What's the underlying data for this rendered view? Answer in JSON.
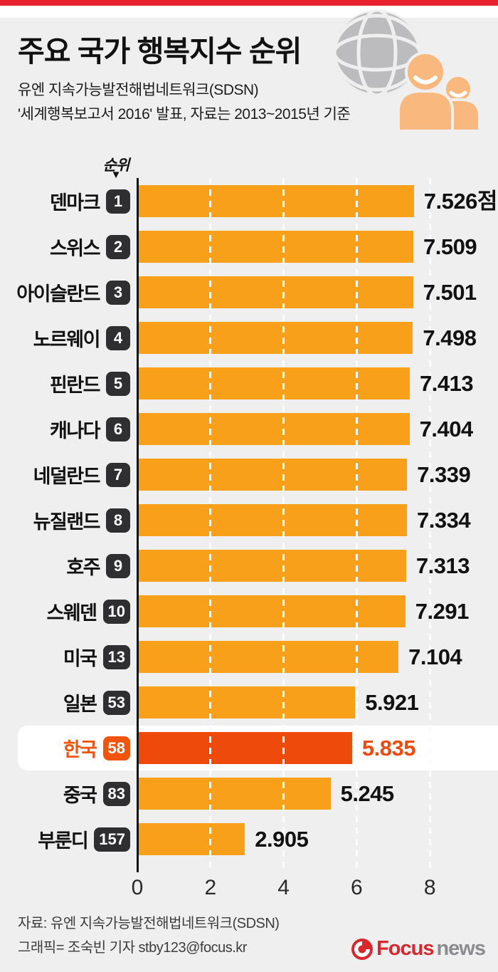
{
  "page": {
    "background": "#efefef",
    "top_bar_color": "#e8212e"
  },
  "header": {
    "title_light": "주요 국가",
    "title_bold": "행복지수 순위",
    "subtitle_line1": "유엔 지속가능발전해법네트워크(SDSN)",
    "subtitle_line2": "'세계행복보고서 2016' 발표, 자료는 2013~2015년 기준"
  },
  "chart_data": {
    "type": "bar",
    "orientation": "horizontal",
    "rank_header": "순위",
    "xlim": [
      0,
      8
    ],
    "x_ticks": [
      "0",
      "2",
      "4",
      "6",
      "8"
    ],
    "grid": "dashed-white-vertical",
    "bar_color": "#f9a01b",
    "highlight_bar_color": "#ee4a0c",
    "badge_color": "#2f2f31",
    "countries": [
      {
        "name": "덴마크",
        "rank": "1",
        "value": 7.526,
        "value_label": "7.526점",
        "highlight": false
      },
      {
        "name": "스위스",
        "rank": "2",
        "value": 7.509,
        "value_label": "7.509",
        "highlight": false
      },
      {
        "name": "아이슬란드",
        "rank": "3",
        "value": 7.501,
        "value_label": "7.501",
        "highlight": false
      },
      {
        "name": "노르웨이",
        "rank": "4",
        "value": 7.498,
        "value_label": "7.498",
        "highlight": false
      },
      {
        "name": "핀란드",
        "rank": "5",
        "value": 7.413,
        "value_label": "7.413",
        "highlight": false
      },
      {
        "name": "캐나다",
        "rank": "6",
        "value": 7.404,
        "value_label": "7.404",
        "highlight": false
      },
      {
        "name": "네덜란드",
        "rank": "7",
        "value": 7.339,
        "value_label": "7.339",
        "highlight": false
      },
      {
        "name": "뉴질랜드",
        "rank": "8",
        "value": 7.334,
        "value_label": "7.334",
        "highlight": false
      },
      {
        "name": "호주",
        "rank": "9",
        "value": 7.313,
        "value_label": "7.313",
        "highlight": false
      },
      {
        "name": "스웨덴",
        "rank": "10",
        "value": 7.291,
        "value_label": "7.291",
        "highlight": false
      },
      {
        "name": "미국",
        "rank": "13",
        "value": 7.104,
        "value_label": "7.104",
        "highlight": false
      },
      {
        "name": "일본",
        "rank": "53",
        "value": 5.921,
        "value_label": "5.921",
        "highlight": false
      },
      {
        "name": "한국",
        "rank": "58",
        "value": 5.835,
        "value_label": "5.835",
        "highlight": true
      },
      {
        "name": "중국",
        "rank": "83",
        "value": 5.245,
        "value_label": "5.245",
        "highlight": false
      },
      {
        "name": "부룬디",
        "rank": "157",
        "value": 2.905,
        "value_label": "2.905",
        "highlight": false
      }
    ]
  },
  "footer": {
    "source": "자료: 유엔 지속가능발전해법네트워크(SDSN)",
    "credit": "그래픽= 조숙빈 기자 stby123@focus.kr",
    "logo_focus": "Focus",
    "logo_news": "news"
  }
}
